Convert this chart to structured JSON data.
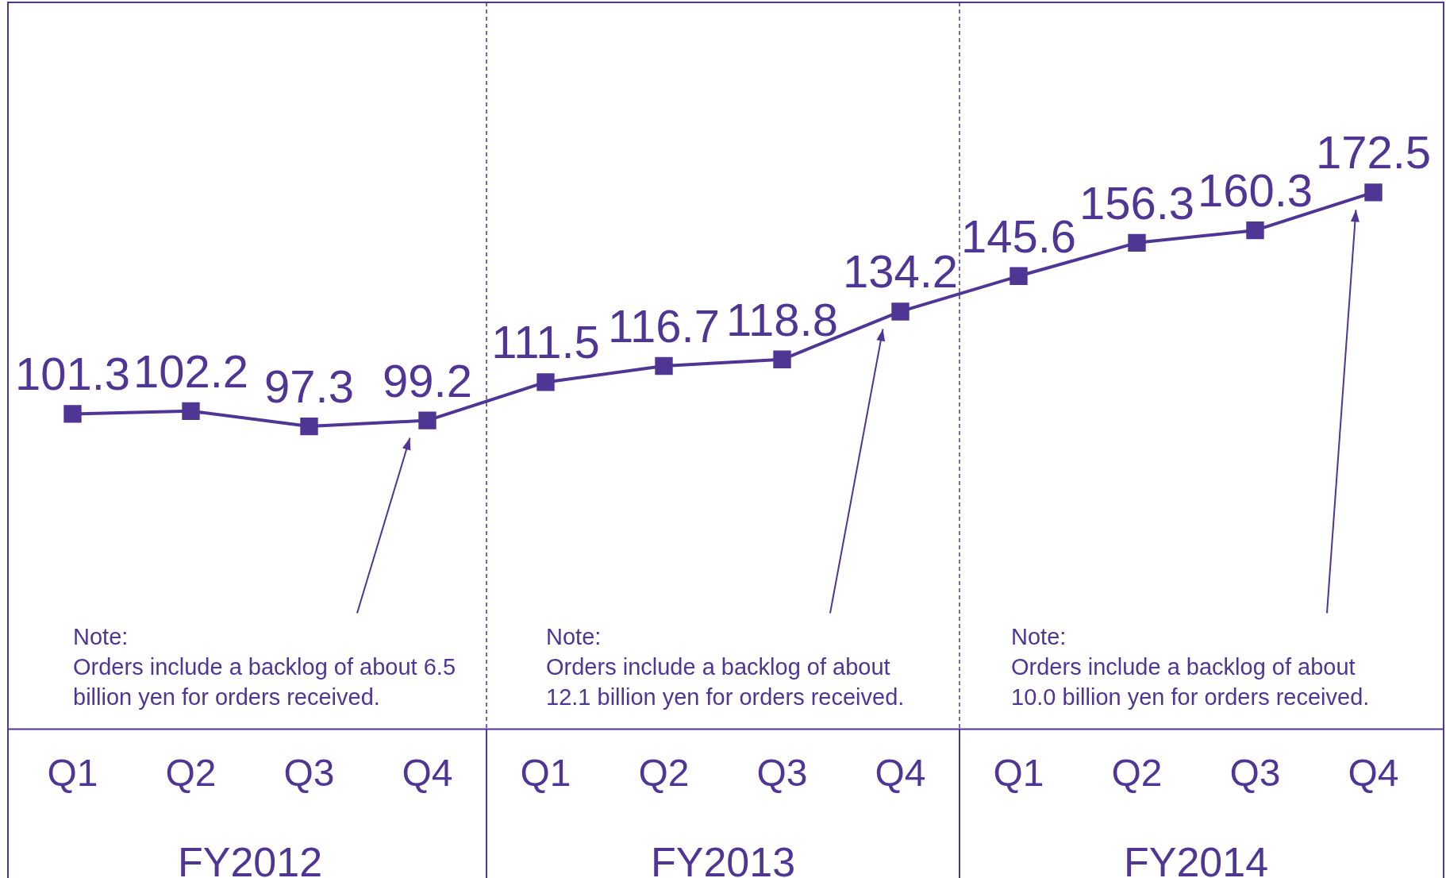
{
  "chart_data": {
    "type": "line",
    "categories": [
      "Q1",
      "Q2",
      "Q3",
      "Q4",
      "Q1",
      "Q2",
      "Q3",
      "Q4",
      "Q1",
      "Q2",
      "Q3",
      "Q4"
    ],
    "values": [
      101.3,
      102.2,
      97.3,
      99.2,
      111.5,
      116.7,
      118.8,
      134.2,
      145.6,
      156.3,
      160.3,
      172.5
    ],
    "color": "#4f3594",
    "marker": "square",
    "line_style": "solid",
    "data_labels": true,
    "grid": false,
    "legend": false,
    "tick_labels": "x",
    "annotations": [
      "FY2012",
      "FY2013",
      "FY2014",
      "Note:\nOrders include a backlog of about 6.5 billion yen for orders received.",
      "Note:\nOrders include a backlog of about 12.1 billion yen for orders received.",
      "Note:\nOrders include a backlog of about 10.0 billion yen for orders received."
    ]
  }
}
